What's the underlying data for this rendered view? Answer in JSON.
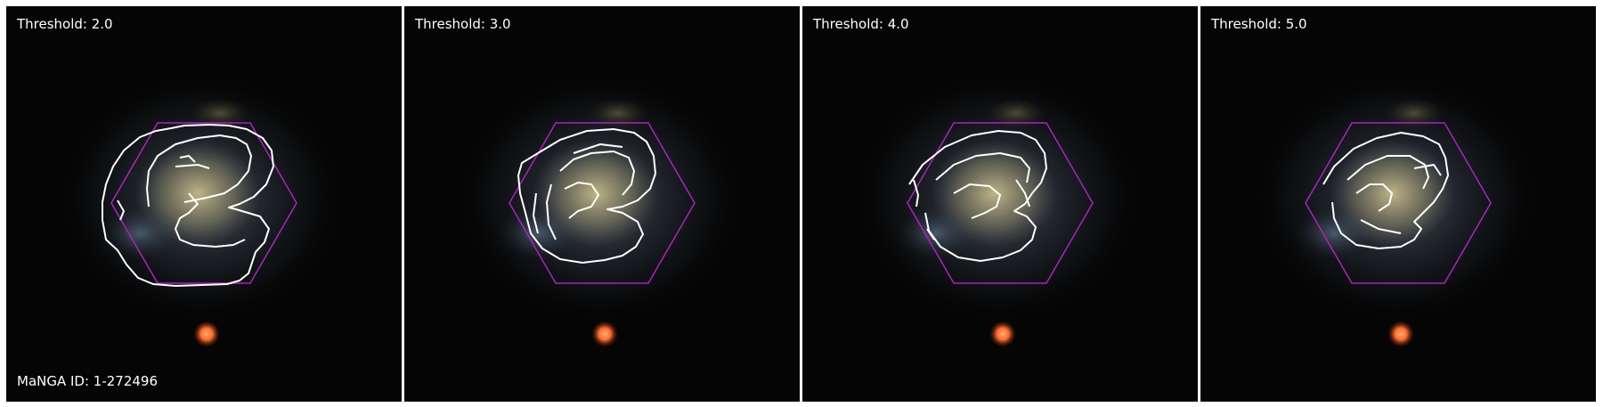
{
  "panels": [
    {
      "title": "Threshold: 2.0",
      "id_label": "MaNGA ID: 1-272496"
    },
    {
      "title": "Threshold: 3.0",
      "id_label": ""
    },
    {
      "title": "Threshold: 4.0",
      "id_label": ""
    },
    {
      "title": "Threshold: 5.0",
      "id_label": ""
    }
  ],
  "colors": {
    "background": "#050505",
    "hexagon": "#b01fc4",
    "contour": "#ffffff",
    "star": "#ff6a2a"
  }
}
